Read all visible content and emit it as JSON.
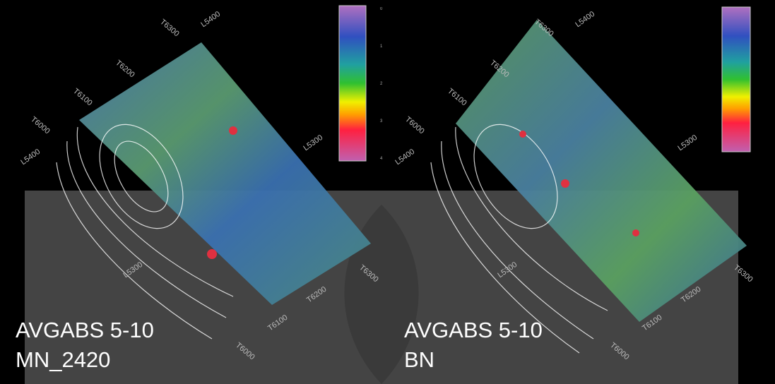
{
  "panels": [
    {
      "caption": [
        "AVGABS 5-10",
        "MN_2420"
      ],
      "grid_labels": [
        "T6300",
        "L5400",
        "T6200",
        "T6100",
        "T6000",
        "L5400",
        "L5300",
        "L5300",
        "T6300",
        "T6200",
        "T6100",
        "T6000"
      ],
      "colorbar_ticks": [
        "0",
        "1",
        "2",
        "3",
        "4"
      ]
    },
    {
      "caption": [
        "AVGABS 5-10",
        "BN"
      ],
      "grid_labels": [
        "T6300",
        "L5400",
        "T6200",
        "T6100",
        "T6000",
        "L5400",
        "L5300",
        "L5300",
        "T6300",
        "T6200",
        "T6100",
        "T6000"
      ]
    }
  ]
}
